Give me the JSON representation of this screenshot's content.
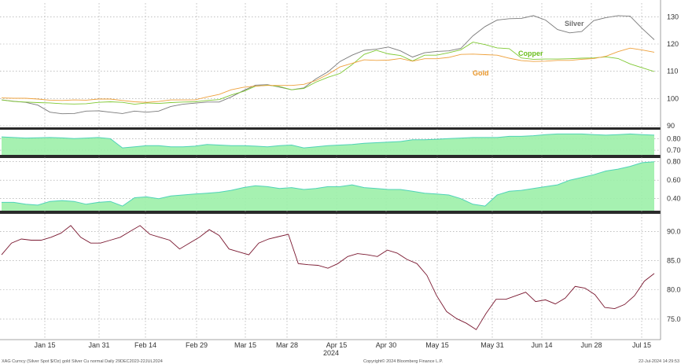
{
  "chart_data": [
    {
      "type": "line",
      "title": "",
      "ylim": [
        90,
        135
      ],
      "yticks": [
        90,
        100,
        110,
        120,
        130
      ],
      "series": [
        {
          "name": "Silver",
          "color": "#7a7a7a",
          "values": [
            99.5,
            99,
            98.6,
            97.6,
            95,
            94.4,
            94.5,
            95.4,
            95.5,
            95,
            94.5,
            95.4,
            95,
            95.4,
            97.1,
            97.9,
            98.3,
            98.7,
            98.7,
            100.6,
            102.9,
            104.9,
            105.1,
            104.2,
            103.2,
            103.9,
            107.2,
            109.8,
            113.6,
            115.9,
            117.7,
            118.1,
            118.9,
            117.5,
            115.2,
            116.8,
            117.3,
            117.5,
            118.4,
            123,
            126.4,
            128.8,
            129.3,
            129.4,
            130.4,
            128.8,
            125.3,
            124.1,
            124.6,
            128.6,
            129.7,
            130.4,
            130.2,
            125.7,
            121.6
          ]
        },
        {
          "name": "Copper",
          "color": "#7fc832",
          "values": [
            99.5,
            98.9,
            98.7,
            98.5,
            98.4,
            98.1,
            98,
            98.1,
            98.6,
            98.8,
            98.6,
            97.9,
            98.4,
            98.2,
            98.5,
            98.7,
            98.8,
            99.3,
            99.6,
            101.3,
            102.6,
            104.5,
            104.9,
            104.4,
            103.2,
            103.7,
            106,
            107.8,
            109.2,
            112.4,
            116.2,
            117.7,
            116.4,
            115.8,
            113.8,
            115.9,
            115.9,
            116.8,
            117.9,
            120.7,
            119.8,
            118.6,
            118.3,
            114.9,
            114.4,
            114.5,
            114.5,
            114.6,
            114.8,
            114.9,
            115.3,
            114.7,
            112.7,
            111.3,
            109.9
          ]
        },
        {
          "name": "Gold",
          "color": "#eea13c",
          "values": [
            100.2,
            100.1,
            100.1,
            99.8,
            99.4,
            99.3,
            99.5,
            99.4,
            99.8,
            99.8,
            99.3,
            98.8,
            98.6,
            98.9,
            99.5,
            99.5,
            99.5,
            100.6,
            101.5,
            103.2,
            104.1,
            104.6,
            104.8,
            104.8,
            104.8,
            105.2,
            106.6,
            108.9,
            111.6,
            112.9,
            114.2,
            114,
            114.1,
            114.7,
            113.7,
            114.6,
            114.6,
            115.1,
            116.2,
            116.3,
            116.1,
            115.9,
            114.8,
            113.9,
            113.6,
            113.7,
            114,
            114,
            114.4,
            114.7,
            115.5,
            117.2,
            118.5,
            117.8,
            117
          ]
        }
      ]
    },
    {
      "type": "area",
      "ylim": [
        0.66,
        0.87
      ],
      "yticks": [
        0.7,
        0.8
      ],
      "series": [
        {
          "name": "",
          "values": [
            0.815,
            0.81,
            0.805,
            0.808,
            0.81,
            0.806,
            0.8,
            0.805,
            0.81,
            0.8,
            0.72,
            0.73,
            0.74,
            0.74,
            0.73,
            0.73,
            0.735,
            0.75,
            0.745,
            0.74,
            0.74,
            0.735,
            0.73,
            0.74,
            0.745,
            0.72,
            0.73,
            0.74,
            0.745,
            0.75,
            0.76,
            0.765,
            0.77,
            0.775,
            0.79,
            0.79,
            0.795,
            0.8,
            0.805,
            0.81,
            0.81,
            0.81,
            0.82,
            0.82,
            0.825,
            0.835,
            0.84,
            0.84,
            0.84,
            0.835,
            0.83,
            0.835,
            0.84,
            0.835,
            0.83
          ]
        }
      ]
    },
    {
      "type": "area",
      "ylim": [
        0.27,
        0.84
      ],
      "yticks": [
        0.4,
        0.6,
        0.8
      ],
      "series": [
        {
          "name": "",
          "values": [
            0.36,
            0.36,
            0.34,
            0.33,
            0.37,
            0.38,
            0.37,
            0.34,
            0.36,
            0.37,
            0.32,
            0.41,
            0.42,
            0.4,
            0.43,
            0.44,
            0.45,
            0.46,
            0.47,
            0.49,
            0.52,
            0.54,
            0.53,
            0.51,
            0.52,
            0.5,
            0.51,
            0.53,
            0.53,
            0.55,
            0.52,
            0.51,
            0.5,
            0.5,
            0.48,
            0.46,
            0.45,
            0.44,
            0.4,
            0.34,
            0.32,
            0.44,
            0.48,
            0.49,
            0.51,
            0.53,
            0.55,
            0.6,
            0.63,
            0.66,
            0.7,
            0.72,
            0.75,
            0.79,
            0.8
          ]
        }
      ]
    },
    {
      "type": "line",
      "ylim": [
        71.5,
        93
      ],
      "yticks": [
        75.0,
        80.0,
        85.0,
        90.0
      ],
      "series": [
        {
          "name": "",
          "color": "#7a1830",
          "values": [
            86,
            88,
            88.7,
            88.5,
            88.5,
            89,
            89.7,
            91,
            89,
            88,
            88,
            88.5,
            89,
            90,
            91,
            89.5,
            89,
            88.5,
            87,
            88,
            89,
            90.3,
            89.3,
            87,
            86.5,
            86,
            88,
            88.7,
            89.1,
            89.5,
            84.5,
            84.3,
            84.2,
            83.7,
            84.5,
            85.7,
            86.2,
            86,
            85.7,
            86.8,
            86.3,
            85.2,
            84.5,
            82.5,
            79,
            76.3,
            75.1,
            74.3,
            73.2,
            76,
            78.4,
            78.4,
            79,
            79.6,
            78,
            78.3,
            77.6,
            78.6,
            80.6,
            80.3,
            79.2,
            77,
            76.8,
            77.5,
            79,
            81.5,
            82.8
          ]
        }
      ]
    }
  ],
  "x_tick_labels": [
    "Jan 15",
    "Jan 31",
    "Feb 14",
    "Feb 29",
    "Mar 15",
    "Mar 28",
    "Apr 15",
    "Apr 30",
    "May 15",
    "May 31",
    "Jun 14",
    "Jun 28",
    "Jul 15"
  ],
  "year_label": "2024",
  "footer": {
    "left": "XAG Curncy (Silver Spot  $/Oz) gold Silver Cu normal  Daily 29DEC2023-22JUL2024",
    "center": "Copyright© 2024 Bloomberg Finance L.P.",
    "right": "22-Jul-2024 14:29:53"
  }
}
